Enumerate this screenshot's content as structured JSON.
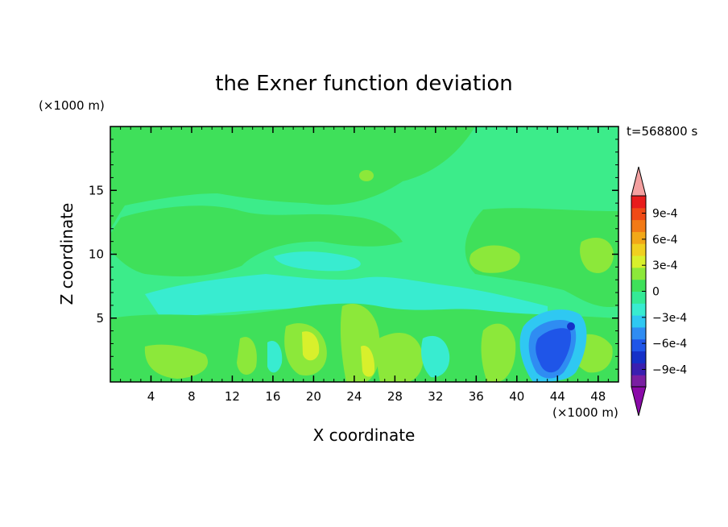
{
  "chart_data": {
    "type": "heatmap",
    "title": "the Exner function deviation",
    "xlabel": "X coordinate",
    "ylabel": "Z coordinate",
    "x_unit": "(×1000 m)",
    "y_unit": "(×1000 m)",
    "time_label": "t=568800 s",
    "xlim": [
      0,
      50
    ],
    "ylim": [
      0,
      20
    ],
    "x_ticks": [
      4,
      8,
      12,
      16,
      20,
      24,
      28,
      32,
      36,
      40,
      44,
      48
    ],
    "y_ticks": [
      5,
      10,
      15
    ],
    "colorbar": {
      "min": -0.0011,
      "max": 0.0011,
      "tick_values": [
        0.0009,
        0.0006,
        0.0003,
        0,
        -0.0003,
        -0.0006,
        -0.0009
      ],
      "tick_labels": [
        "9e-4",
        "6e-4",
        "3e-4",
        "0",
        "−3e-4",
        "−6e-4",
        "−9e-4"
      ],
      "colors": [
        "#7a1fa2",
        "#3a1fb0",
        "#1530c8",
        "#1f55e8",
        "#2f8cf2",
        "#2fc8f2",
        "#38ecd0",
        "#34ea96",
        "#3fe05a",
        "#8ce83a",
        "#d8f02c",
        "#f0d020",
        "#f2a818",
        "#f27a16",
        "#f04a16",
        "#e81c1c"
      ],
      "over_color": "#f4a0a0",
      "under_color": "#8a0aa8"
    },
    "grid": false
  },
  "colors": {
    "background_field": "#3cec8a",
    "zero_band": "#3fe05a"
  }
}
